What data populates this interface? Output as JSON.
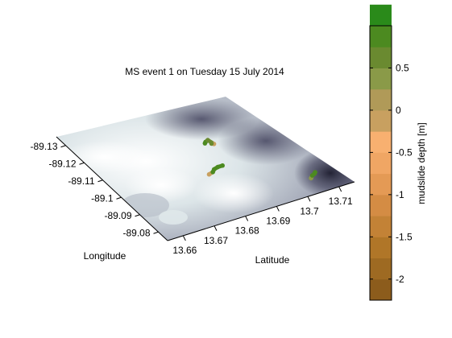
{
  "chart_data": {
    "type": "surface",
    "title": "MS event 1 on Tuesday 15 July 2014",
    "xlabel": "Latitude",
    "ylabel": "Longitude",
    "x_ticks": [
      "13.66",
      "13.67",
      "13.68",
      "13.69",
      "13.7",
      "13.71"
    ],
    "y_ticks": [
      "-89.13",
      "-89.12",
      "-89.11",
      "-89.1",
      "-89.09",
      "-89.08"
    ],
    "xlim": [
      13.655,
      13.715
    ],
    "ylim": [
      -89.135,
      -89.075
    ],
    "surface_colormap": [
      "#ffffff",
      "#dfe8ea",
      "#b9c1cb",
      "#8a8ea3",
      "#4c4c66",
      "#1c1c2e"
    ],
    "colorbar": {
      "label": "mudslide depth [m]",
      "ticks": [
        "0.5",
        "0",
        "-0.5",
        "-1",
        "-1.5",
        "-2"
      ],
      "tick_values": [
        0.5,
        0,
        -0.5,
        -1,
        -1.5,
        -2
      ],
      "range": [
        -2.25,
        1.0
      ],
      "step": 0.25,
      "colors": [
        "#8c5c1c",
        "#9e6a22",
        "#b07628",
        "#c38236",
        "#d48c44",
        "#e49a55",
        "#f0a664",
        "#f8b070",
        "#c8a060",
        "#b09a58",
        "#8a9a48",
        "#6a8a30",
        "#4c8a20",
        "#2a8a1a"
      ]
    },
    "series": [
      {
        "x": [
          13.689,
          13.6895,
          13.6905,
          13.691,
          13.6905
        ],
        "y": [
          -89.112,
          -89.1125,
          -89.113,
          -89.1105,
          -89.111
        ],
        "depth": [
          0.9,
          0.8,
          0.7,
          -0.2,
          0.6
        ]
      },
      {
        "x": [
          13.682,
          13.6835,
          13.6845,
          13.686,
          13.6875
        ],
        "y": [
          -89.098,
          -89.0985,
          -89.0995,
          -89.1,
          -89.1
        ],
        "depth": [
          -0.2,
          0.9,
          0.9,
          0.8,
          0.9
        ]
      },
      {
        "x": [
          13.7055,
          13.7065,
          13.7075,
          13.708
        ],
        "y": [
          -89.0825,
          -89.0835,
          -89.084,
          -89.0845
        ],
        "depth": [
          0.3,
          0.8,
          0.9,
          0.9
        ]
      }
    ]
  }
}
